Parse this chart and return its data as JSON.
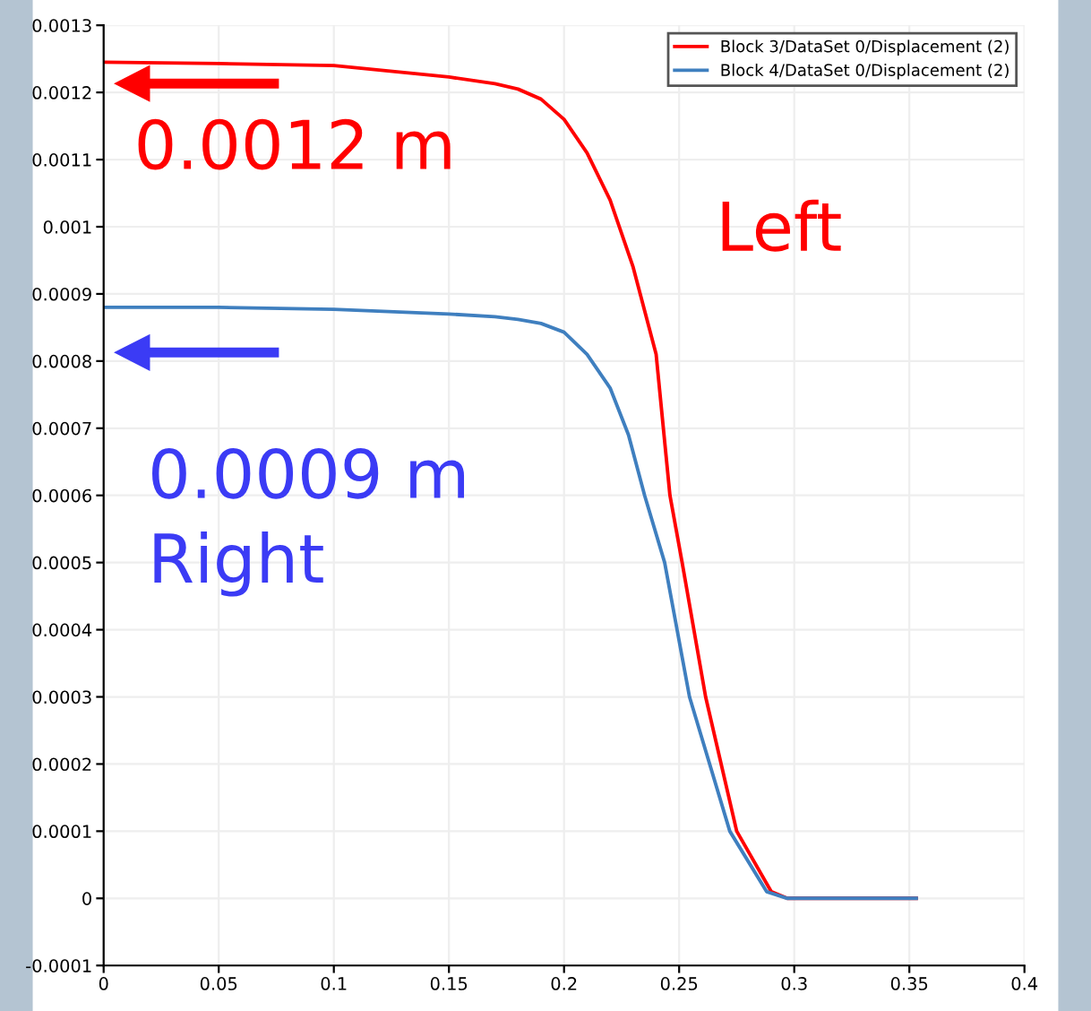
{
  "chart_data": {
    "type": "line",
    "series": [
      {
        "name": "Block 3/DataSet 0/Displacement (2)",
        "color": "#ff0000",
        "x": [
          0,
          0.05,
          0.1,
          0.15,
          0.17,
          0.18,
          0.19,
          0.2,
          0.21,
          0.22,
          0.23,
          0.24,
          0.246,
          0.2513,
          0.2615,
          0.275,
          0.29,
          0.297,
          0.32,
          0.353
        ],
        "values": [
          0.001245,
          0.001243,
          0.00124,
          0.001223,
          0.001213,
          0.001205,
          0.00119,
          0.00116,
          0.00111,
          0.00104,
          0.00094,
          0.00081,
          0.0006,
          0.0005,
          0.0003,
          0.0001,
          1e-05,
          0,
          0,
          0
        ]
      },
      {
        "name": "Block 4/DataSet 0/Displacement (2)",
        "color": "#3f7fbf",
        "x": [
          0,
          0.05,
          0.1,
          0.15,
          0.17,
          0.18,
          0.19,
          0.2,
          0.21,
          0.22,
          0.228,
          0.235,
          0.2437,
          0.2545,
          0.272,
          0.288,
          0.297,
          0.32,
          0.353
        ],
        "values": [
          0.00088,
          0.00088,
          0.000877,
          0.00087,
          0.000866,
          0.000862,
          0.000856,
          0.000843,
          0.00081,
          0.00076,
          0.00069,
          0.0006,
          0.0005,
          0.0003,
          0.0001,
          1e-05,
          0,
          0,
          0
        ]
      }
    ],
    "xlim": [
      0,
      0.4
    ],
    "xticks": [
      0,
      0.05,
      0.1,
      0.15,
      0.2,
      0.25,
      0.3,
      0.35,
      0.4
    ],
    "ylim": [
      -0.0001,
      0.0013
    ],
    "yticks": [
      -0.0001,
      0,
      0.0001,
      0.0002,
      0.0003,
      0.0004,
      0.0005,
      0.0006,
      0.0007,
      0.0008,
      0.0009,
      0.001,
      0.0011,
      0.0012,
      0.0013
    ],
    "grid": true,
    "legend": "top right",
    "annotations": [
      "0.0012 m",
      "Left",
      "0.0009 m",
      "Right"
    ]
  }
}
